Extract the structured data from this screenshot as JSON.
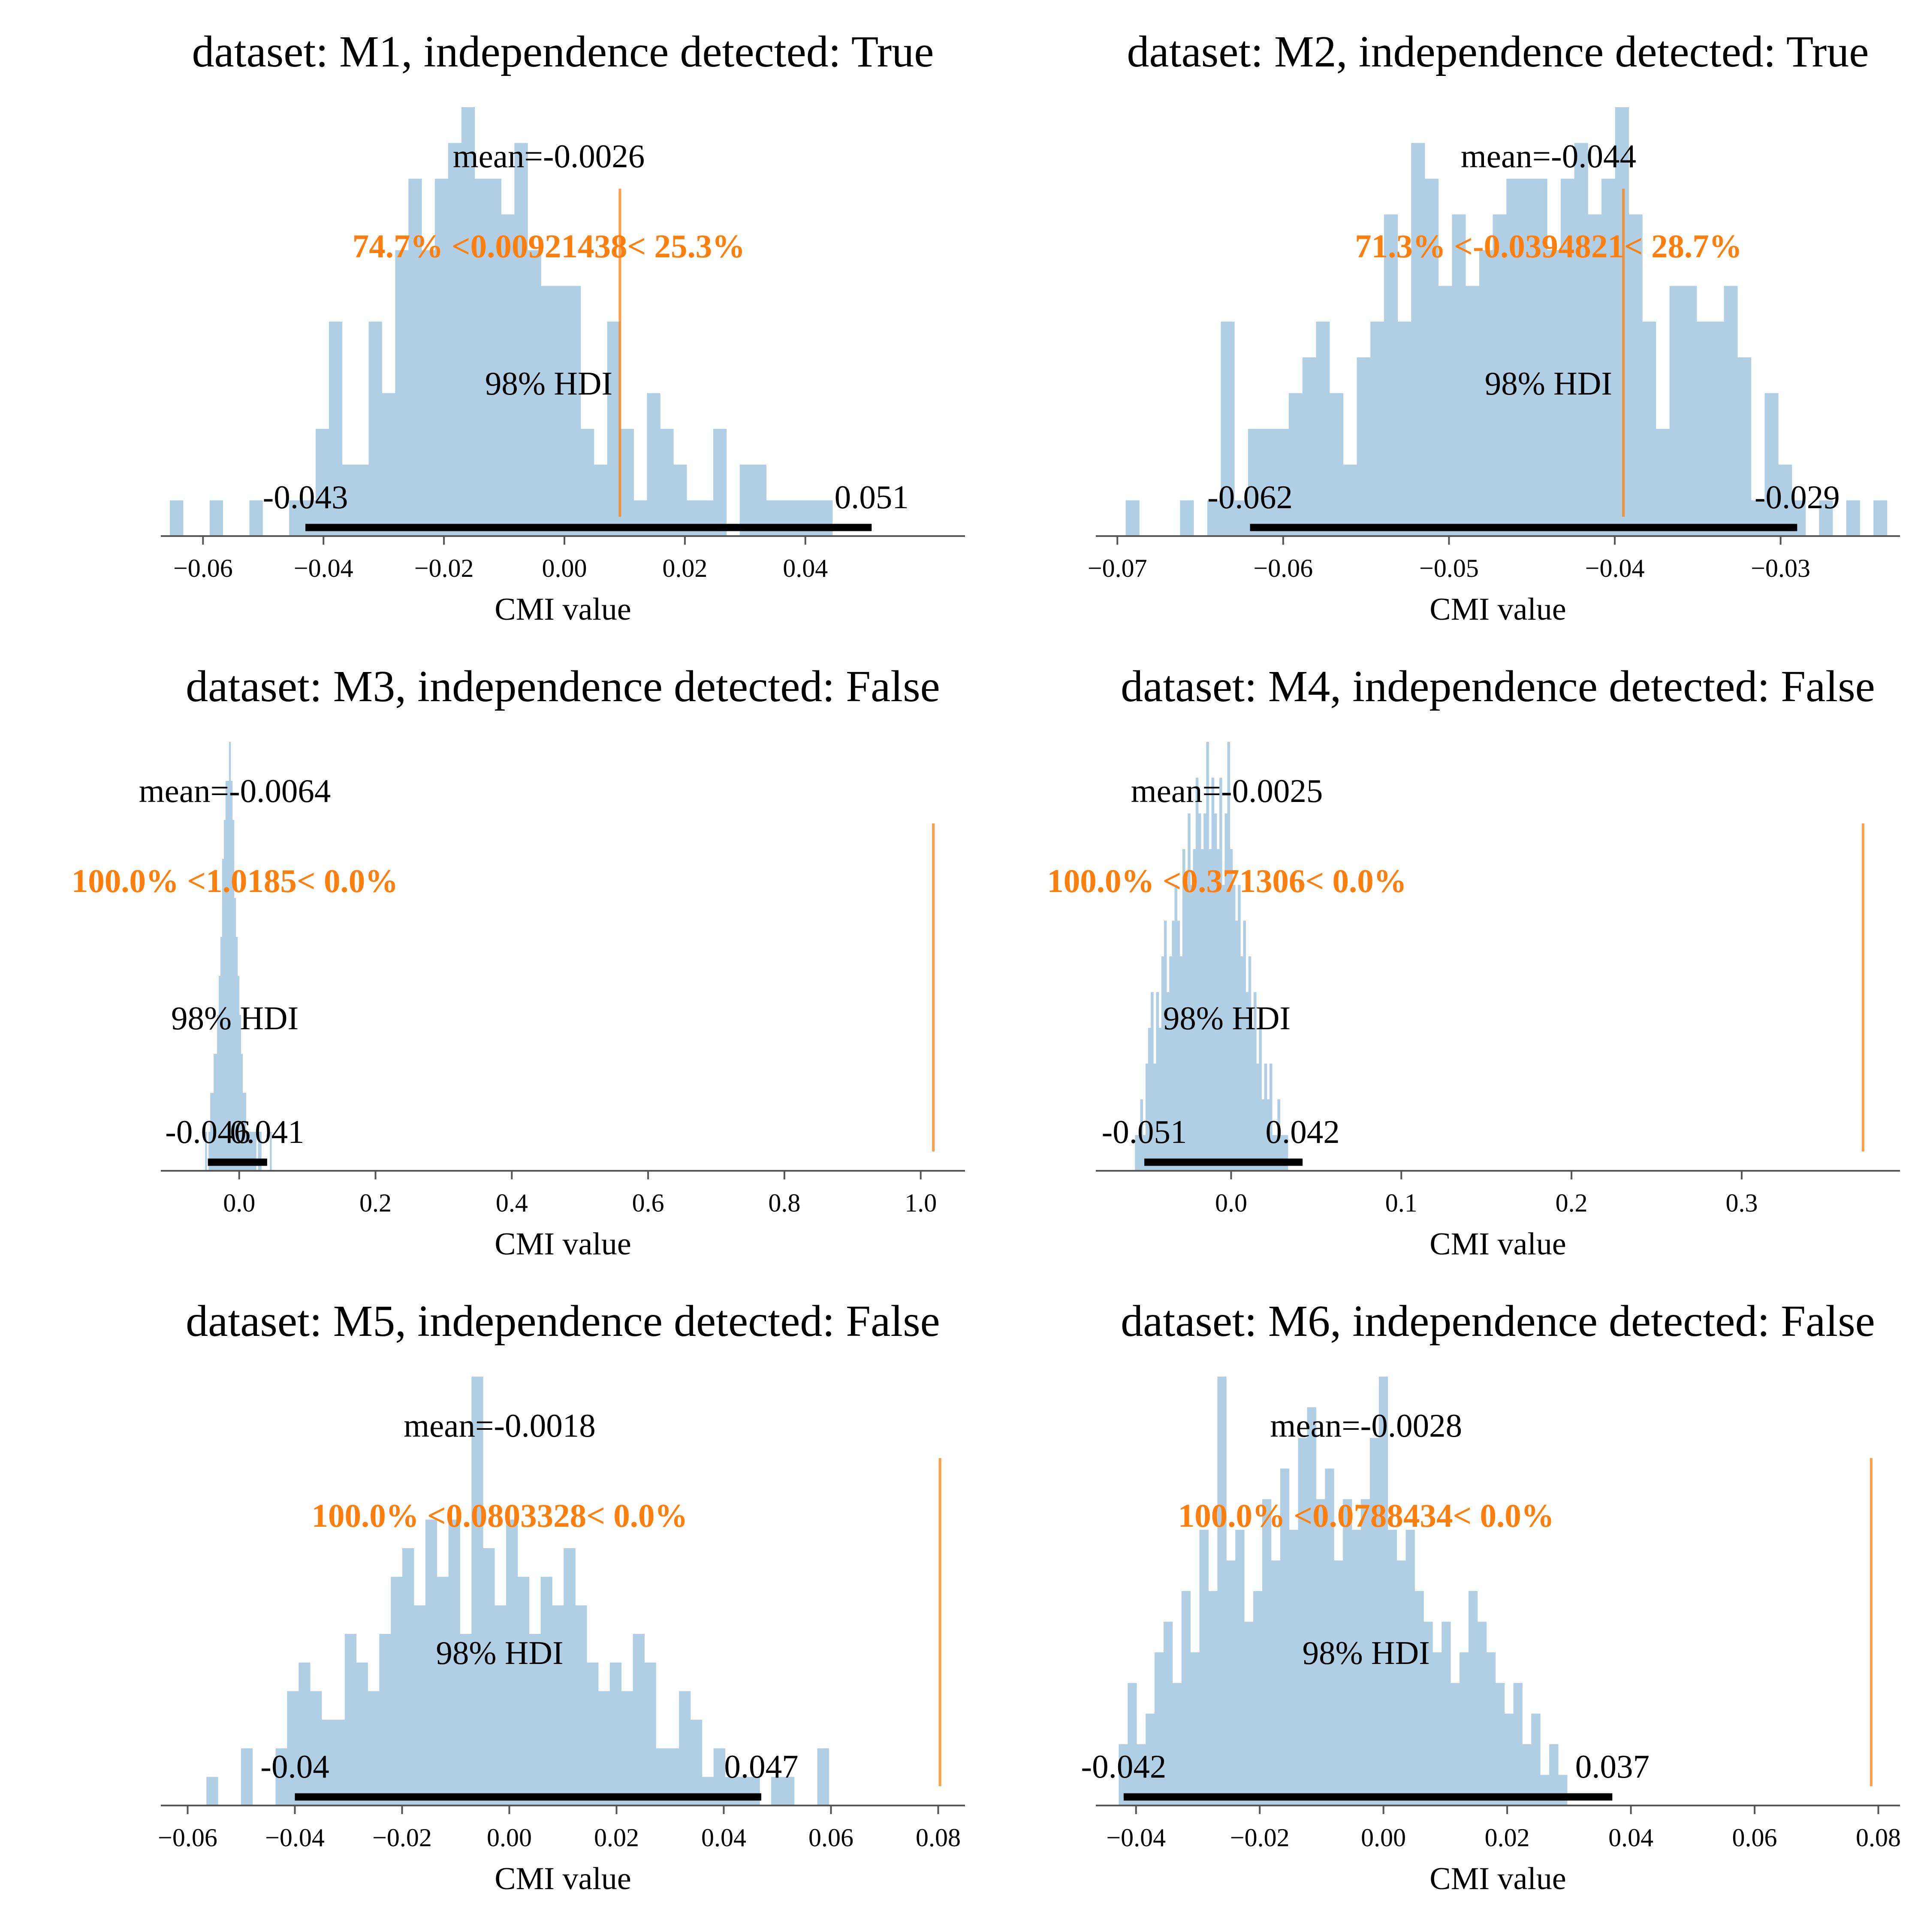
{
  "figure": {
    "colors": {
      "bar": "#B0CFE4",
      "ref": "#FF7F0E",
      "hdi": "#000000",
      "axis": "#555555",
      "text": "#000000"
    }
  },
  "chart_data": [
    {
      "type": "bar",
      "title": "dataset: M1, independence detected: True",
      "xlabel": "CMI value",
      "xlim": [
        -0.067,
        0.0665
      ],
      "xticks": [
        -0.06,
        -0.04,
        -0.02,
        0.0,
        0.02,
        0.04
      ],
      "xtick_labels": [
        "−0.06",
        "−0.04",
        "−0.02",
        "0.00",
        "0.02",
        "0.04"
      ],
      "mean_label": "mean=-0.0026",
      "mean": -0.0026,
      "ref_value": 0.00921438,
      "ref_label": "74.7% <0.00921438< 25.3%",
      "hdi_label": "98% HDI",
      "hdi": [
        -0.043,
        0.051
      ],
      "hdi_low_label": "-0.043",
      "hdi_high_label": "0.051",
      "hist": {
        "start": -0.0655,
        "width": 0.0022,
        "counts": [
          1,
          0,
          0,
          1,
          0,
          0,
          1,
          0,
          0,
          1,
          1,
          3,
          6,
          2,
          2,
          6,
          4,
          8,
          10,
          8,
          10,
          11,
          12,
          10,
          10,
          9,
          11,
          8,
          7,
          7,
          7,
          3,
          2,
          6,
          3,
          1,
          4,
          3,
          2,
          1,
          1,
          3,
          0,
          2,
          2,
          1,
          1,
          1,
          1,
          1
        ]
      }
    },
    {
      "type": "bar",
      "title": "dataset: M2, independence detected: True",
      "xlabel": "CMI value",
      "xlim": [
        -0.0713,
        -0.0228
      ],
      "xticks": [
        -0.07,
        -0.06,
        -0.05,
        -0.04,
        -0.03
      ],
      "xtick_labels": [
        "−0.07",
        "−0.06",
        "−0.05",
        "−0.04",
        "−0.03"
      ],
      "mean_label": "mean=-0.044",
      "mean": -0.044,
      "ref_value": -0.0394821,
      "ref_label": "71.3% <-0.0394821< 28.7%",
      "hdi_label": "98% HDI",
      "hdi": [
        -0.062,
        -0.029
      ],
      "hdi_low_label": "-0.062",
      "hdi_high_label": "-0.029",
      "hist": {
        "start": -0.0695,
        "width": 0.00082,
        "counts": [
          1,
          0,
          0,
          0,
          1,
          0,
          1,
          6,
          1,
          3,
          3,
          3,
          4,
          5,
          6,
          4,
          2,
          5,
          6,
          9,
          6,
          11,
          10,
          7,
          9,
          7,
          8,
          9,
          10,
          10,
          10,
          8,
          10,
          11,
          9,
          10,
          12,
          9,
          6,
          3,
          7,
          7,
          6,
          6,
          7,
          5,
          1,
          4,
          2,
          1,
          0,
          1,
          0,
          1,
          0,
          1
        ]
      }
    },
    {
      "type": "bar",
      "title": "dataset: M3, independence detected: False",
      "xlabel": "CMI value",
      "xlim": [
        -0.115,
        1.065
      ],
      "xticks": [
        0.0,
        0.2,
        0.4,
        0.6,
        0.8,
        1.0
      ],
      "xtick_labels": [
        "0.0",
        "0.2",
        "0.4",
        "0.6",
        "0.8",
        "1.0"
      ],
      "mean_label": "mean=-0.0064",
      "mean": -0.0064,
      "ref_value": 1.0185,
      "ref_label": "100.0% <1.0185< 0.0%",
      "hdi_label": "98% HDI",
      "hdi": [
        -0.046,
        0.041
      ],
      "hdi_low_label": "-0.046",
      "hdi_high_label": "0.041",
      "hist": {
        "start": -0.05,
        "width": 0.0025,
        "counts": [
          1,
          0,
          1,
          2,
          2,
          3,
          3,
          4,
          5,
          6,
          8,
          9,
          10,
          10,
          11,
          10,
          9,
          7,
          6,
          5,
          4,
          3,
          2,
          2,
          1,
          1,
          1,
          1,
          1,
          1,
          0,
          1,
          1,
          0,
          0,
          0,
          0,
          0,
          1
        ]
      }
    },
    {
      "type": "bar",
      "title": "dataset: M4, independence detected: False",
      "xlabel": "CMI value",
      "xlim": [
        -0.0795,
        0.393
      ],
      "xticks": [
        0.0,
        0.1,
        0.2,
        0.3
      ],
      "xtick_labels": [
        "0.0",
        "0.1",
        "0.2",
        "0.3"
      ],
      "mean_label": "mean=-0.0025",
      "mean": -0.0025,
      "ref_value": 0.371306,
      "ref_label": "100.0% <0.371306< 0.0%",
      "hdi_label": "98% HDI",
      "hdi": [
        -0.051,
        0.042
      ],
      "hdi_low_label": "-0.051",
      "hdi_high_label": "0.042",
      "hist": {
        "start": -0.0565,
        "width": 0.00155,
        "counts": [
          1,
          1,
          2,
          1,
          3,
          4,
          5,
          3,
          5,
          4,
          6,
          7,
          5,
          6,
          7,
          8,
          7,
          6,
          9,
          8,
          10,
          8,
          9,
          11,
          10,
          9,
          10,
          12,
          9,
          11,
          10,
          9,
          11,
          8,
          10,
          12,
          9,
          8,
          7,
          8,
          6,
          7,
          5,
          6,
          4,
          5,
          3,
          4,
          2,
          3,
          2,
          3,
          1,
          1,
          2,
          1,
          1,
          1
        ]
      }
    },
    {
      "type": "bar",
      "title": "dataset: M5, independence detected: False",
      "xlabel": "CMI value",
      "xlim": [
        -0.065,
        0.085
      ],
      "xticks": [
        -0.06,
        -0.04,
        -0.02,
        0.0,
        0.02,
        0.04,
        0.06,
        0.08
      ],
      "xtick_labels": [
        "−0.06",
        "−0.04",
        "−0.02",
        "0.00",
        "0.02",
        "0.04",
        "0.06",
        "0.08"
      ],
      "mean_label": "mean=-0.0018",
      "mean": -0.0018,
      "ref_value": 0.0803328,
      "ref_label": "100.0% <0.0803328< 0.0%",
      "hdi_label": "98% HDI",
      "hdi": [
        -0.04,
        0.047
      ],
      "hdi_low_label": "-0.04",
      "hdi_high_label": "0.047",
      "hist": {
        "start": -0.0565,
        "width": 0.00215,
        "counts": [
          1,
          0,
          0,
          2,
          0,
          0,
          2,
          4,
          5,
          4,
          3,
          3,
          6,
          5,
          4,
          6,
          8,
          9,
          7,
          10,
          8,
          10,
          6,
          15,
          9,
          7,
          10,
          8,
          6,
          8,
          7,
          9,
          7,
          5,
          4,
          5,
          4,
          6,
          5,
          2,
          2,
          4,
          3,
          1,
          2,
          1,
          1,
          1,
          0,
          1,
          1,
          0,
          0,
          2
        ]
      }
    },
    {
      "type": "bar",
      "title": "dataset: M6, independence detected: False",
      "xlabel": "CMI value",
      "xlim": [
        -0.0465,
        0.0835
      ],
      "xticks": [
        -0.04,
        -0.02,
        0.0,
        0.02,
        0.04,
        0.06,
        0.08
      ],
      "xtick_labels": [
        "−0.04",
        "−0.02",
        "0.00",
        "0.02",
        "0.04",
        "0.06",
        "0.08"
      ],
      "mean_label": "mean=-0.0028",
      "mean": -0.0028,
      "ref_value": 0.0788434,
      "ref_label": "100.0% <0.0788434< 0.0%",
      "hdi_label": "98% HDI",
      "hdi": [
        -0.042,
        0.037
      ],
      "hdi_low_label": "-0.042",
      "hdi_high_label": "0.037",
      "hist": {
        "start": -0.0428,
        "width": 0.00145,
        "counts": [
          2,
          4,
          2,
          3,
          5,
          6,
          4,
          7,
          5,
          9,
          7,
          14,
          8,
          9,
          6,
          7,
          10,
          8,
          11,
          9,
          12,
          13,
          10,
          11,
          8,
          10,
          9,
          10,
          12,
          14,
          9,
          8,
          9,
          7,
          6,
          5,
          6,
          4,
          5,
          7,
          6,
          5,
          4,
          3,
          4,
          2,
          3,
          1,
          2,
          1
        ]
      }
    }
  ]
}
